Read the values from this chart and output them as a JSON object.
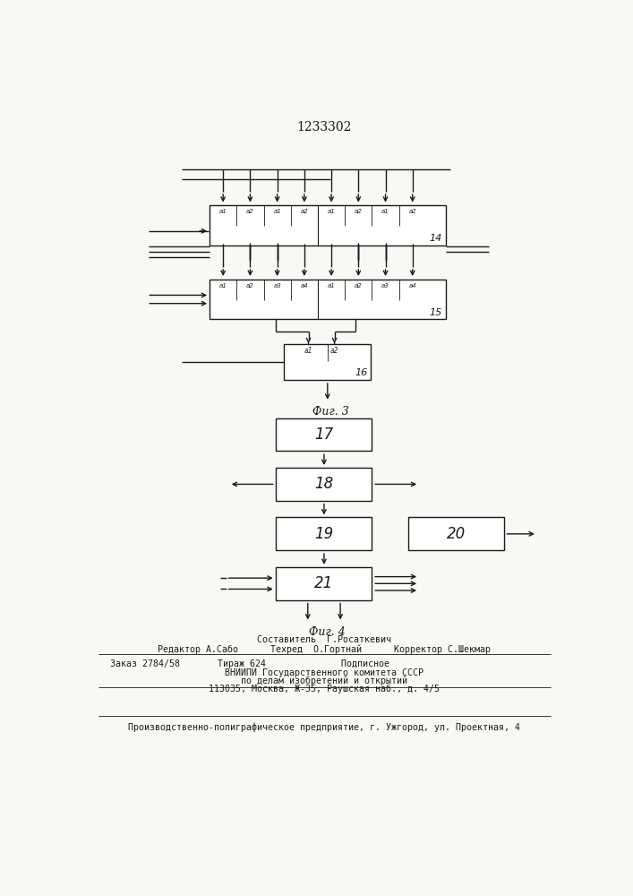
{
  "title": "1233302",
  "fig3_label": "Фиг. 3",
  "fig4_label": "Фиг. 4",
  "bg_color": "#f8f8f4",
  "line_color": "#1a1a1a",
  "box_color": "#ffffff",
  "footer_line0": "Составитель  Г.Росаткевич",
  "footer_line1": "Редактор А.Сабо      Техред  О.Гортнай      Корректор С.Шекмар",
  "footer_line2": "Заказ 2784/58       Тираж 624              Подписное",
  "footer_line3": "ВНИИПИ Государственного комитета СССР",
  "footer_line4": "по делам изобретений и открытий",
  "footer_line5": "113035, Москва, Ж-35, Раушская наб., д. 4/5",
  "footer_line6": "Производственно-полиграфическое предприятие, г. Ужгород, ул. Проектная, 4"
}
